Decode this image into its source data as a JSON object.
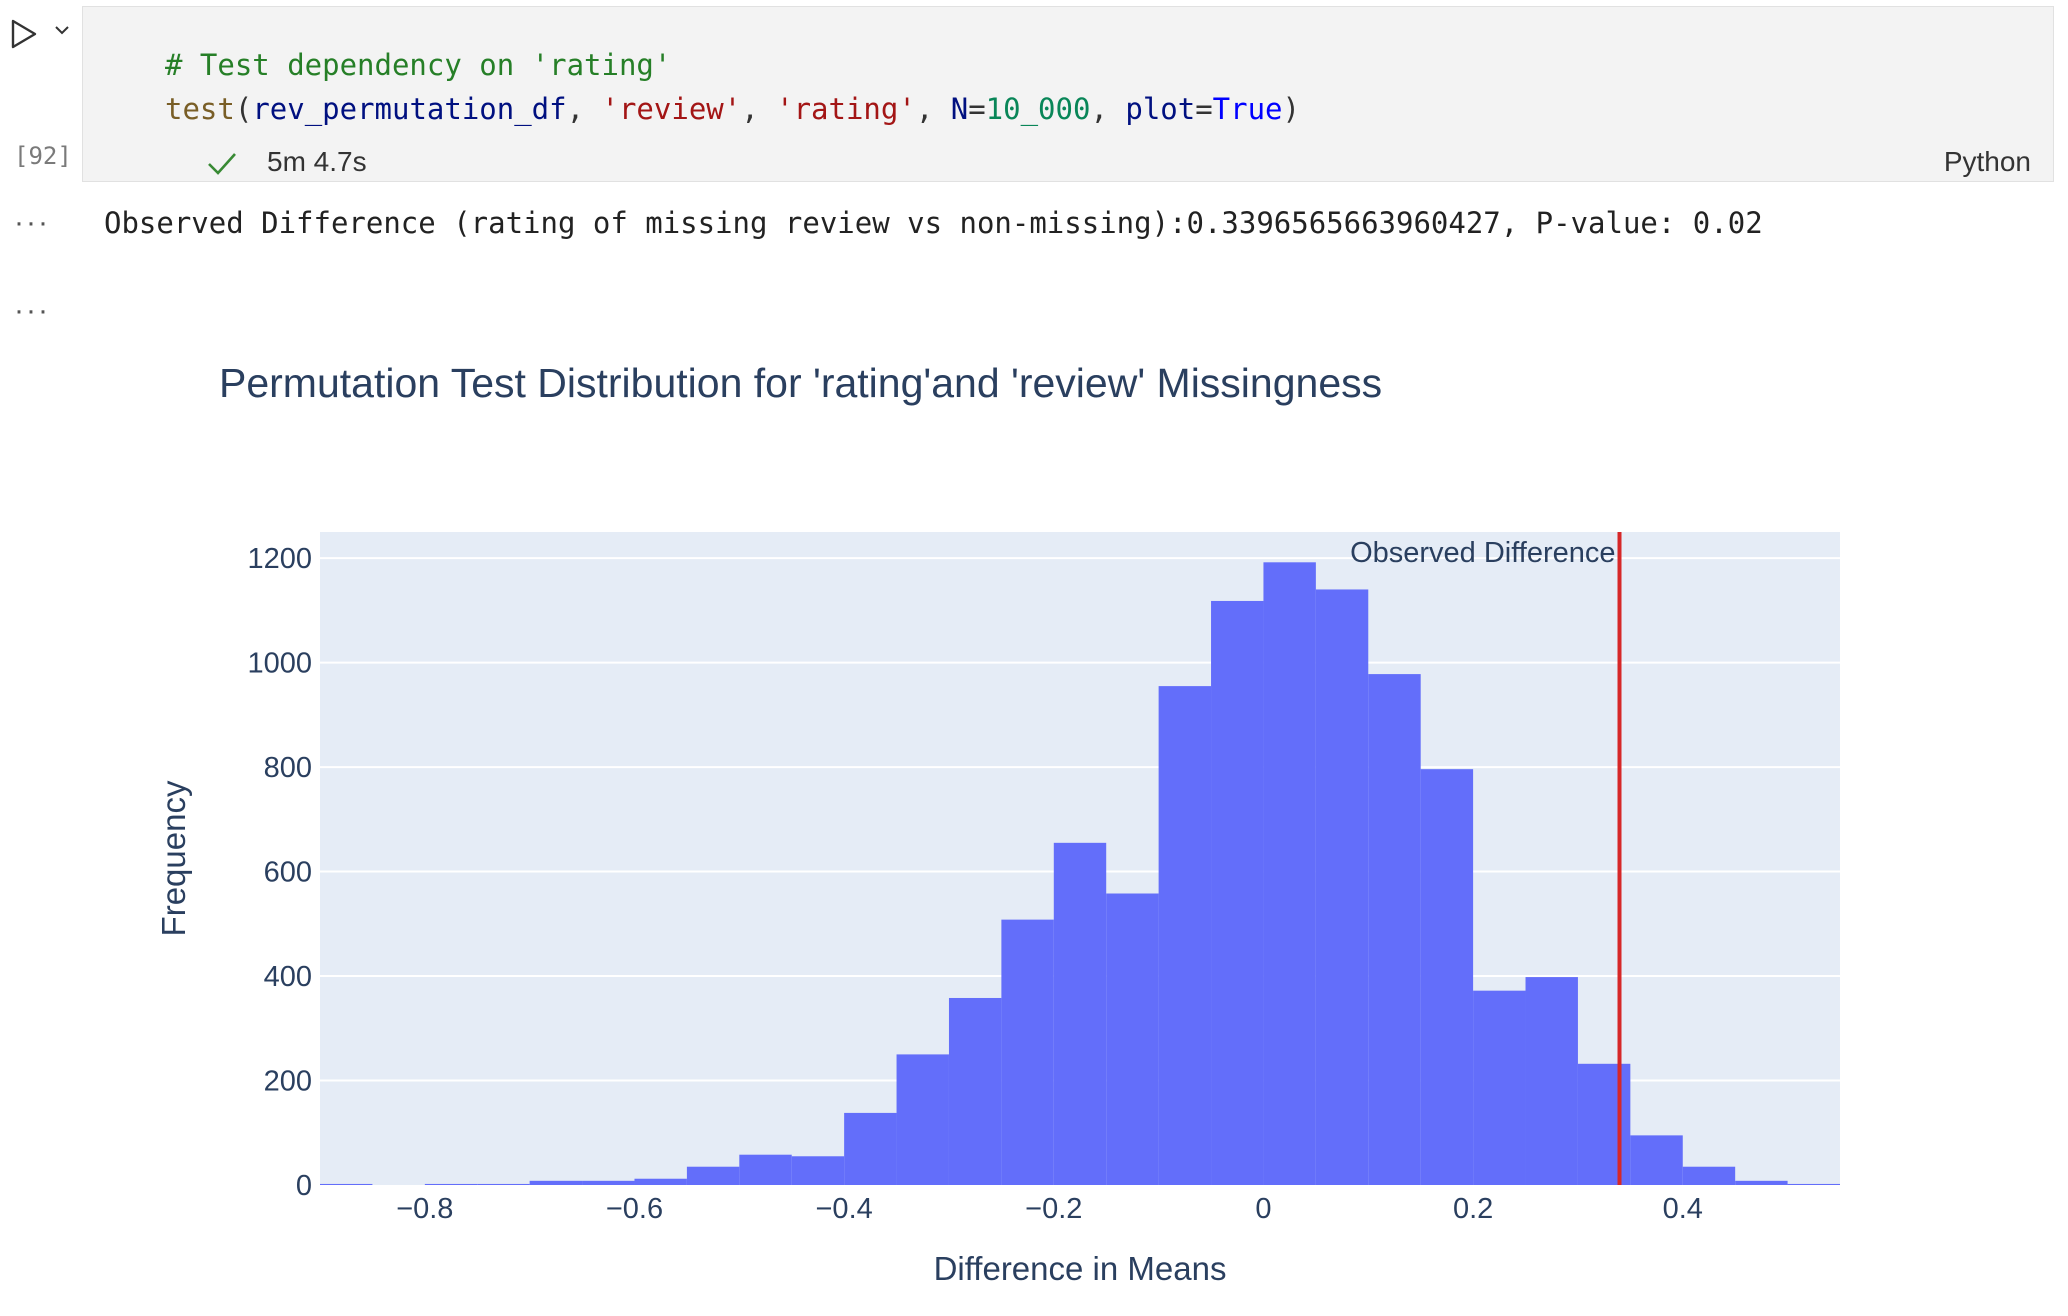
{
  "cell": {
    "code_lines": [
      {
        "tokens": [
          {
            "t": "# Test dependency on 'rating'",
            "c": "comment"
          }
        ]
      },
      {
        "tokens": [
          {
            "t": "test",
            "c": "fn"
          },
          {
            "t": "(",
            "c": "punct"
          },
          {
            "t": "rev_permutation_df",
            "c": "plain"
          },
          {
            "t": ", ",
            "c": "punct"
          },
          {
            "t": "'review'",
            "c": "str"
          },
          {
            "t": ", ",
            "c": "punct"
          },
          {
            "t": "'rating'",
            "c": "str"
          },
          {
            "t": ", ",
            "c": "punct"
          },
          {
            "t": "N",
            "c": "plain"
          },
          {
            "t": "=",
            "c": "punct"
          },
          {
            "t": "10_000",
            "c": "num"
          },
          {
            "t": ", ",
            "c": "punct"
          },
          {
            "t": "plot",
            "c": "plain"
          },
          {
            "t": "=",
            "c": "punct"
          },
          {
            "t": "True",
            "c": "kw"
          },
          {
            "t": ")",
            "c": "punct"
          }
        ]
      }
    ],
    "execution_count": "[92]",
    "duration": "5m 4.7s",
    "language": "Python"
  },
  "output": {
    "dots": "···",
    "stdout": "Observed Difference (rating of missing review vs non-missing):0.3396565663960427, P-value: 0.02"
  },
  "chart_data": {
    "type": "bar",
    "title": "Permutation Test Distribution for 'rating'and 'review' Missingness",
    "xlabel": "Difference in Means",
    "ylabel": "Frequency",
    "xlim": [
      -0.9,
      0.55
    ],
    "ylim": [
      0,
      1250
    ],
    "xticks": [
      -0.8,
      -0.6,
      -0.4,
      -0.2,
      0,
      0.2,
      0.4
    ],
    "xtick_labels": [
      "−0.8",
      "−0.6",
      "−0.4",
      "−0.2",
      "0",
      "0.2",
      "0.4"
    ],
    "yticks": [
      0,
      200,
      400,
      600,
      800,
      1000,
      1200
    ],
    "bin_width": 0.05,
    "bins_start": [
      -0.9,
      -0.85,
      -0.8,
      -0.75,
      -0.7,
      -0.65,
      -0.6,
      -0.55,
      -0.5,
      -0.45,
      -0.4,
      -0.35,
      -0.3,
      -0.25,
      -0.2,
      -0.15,
      -0.1,
      -0.05,
      0.0,
      0.05,
      0.1,
      0.15,
      0.2,
      0.25,
      0.3,
      0.35,
      0.4,
      0.45,
      0.5
    ],
    "values": [
      2,
      0,
      2,
      2,
      8,
      8,
      12,
      35,
      58,
      55,
      138,
      250,
      358,
      508,
      655,
      558,
      955,
      1118,
      1192,
      1140,
      978,
      796,
      372,
      398,
      232,
      95,
      35,
      8,
      2
    ],
    "bar_color": "#636efa",
    "plot_bg": "#e5ecf6",
    "observed_line": {
      "x": 0.3396565663960427,
      "color": "#d62728",
      "label": "Observed Difference"
    }
  }
}
